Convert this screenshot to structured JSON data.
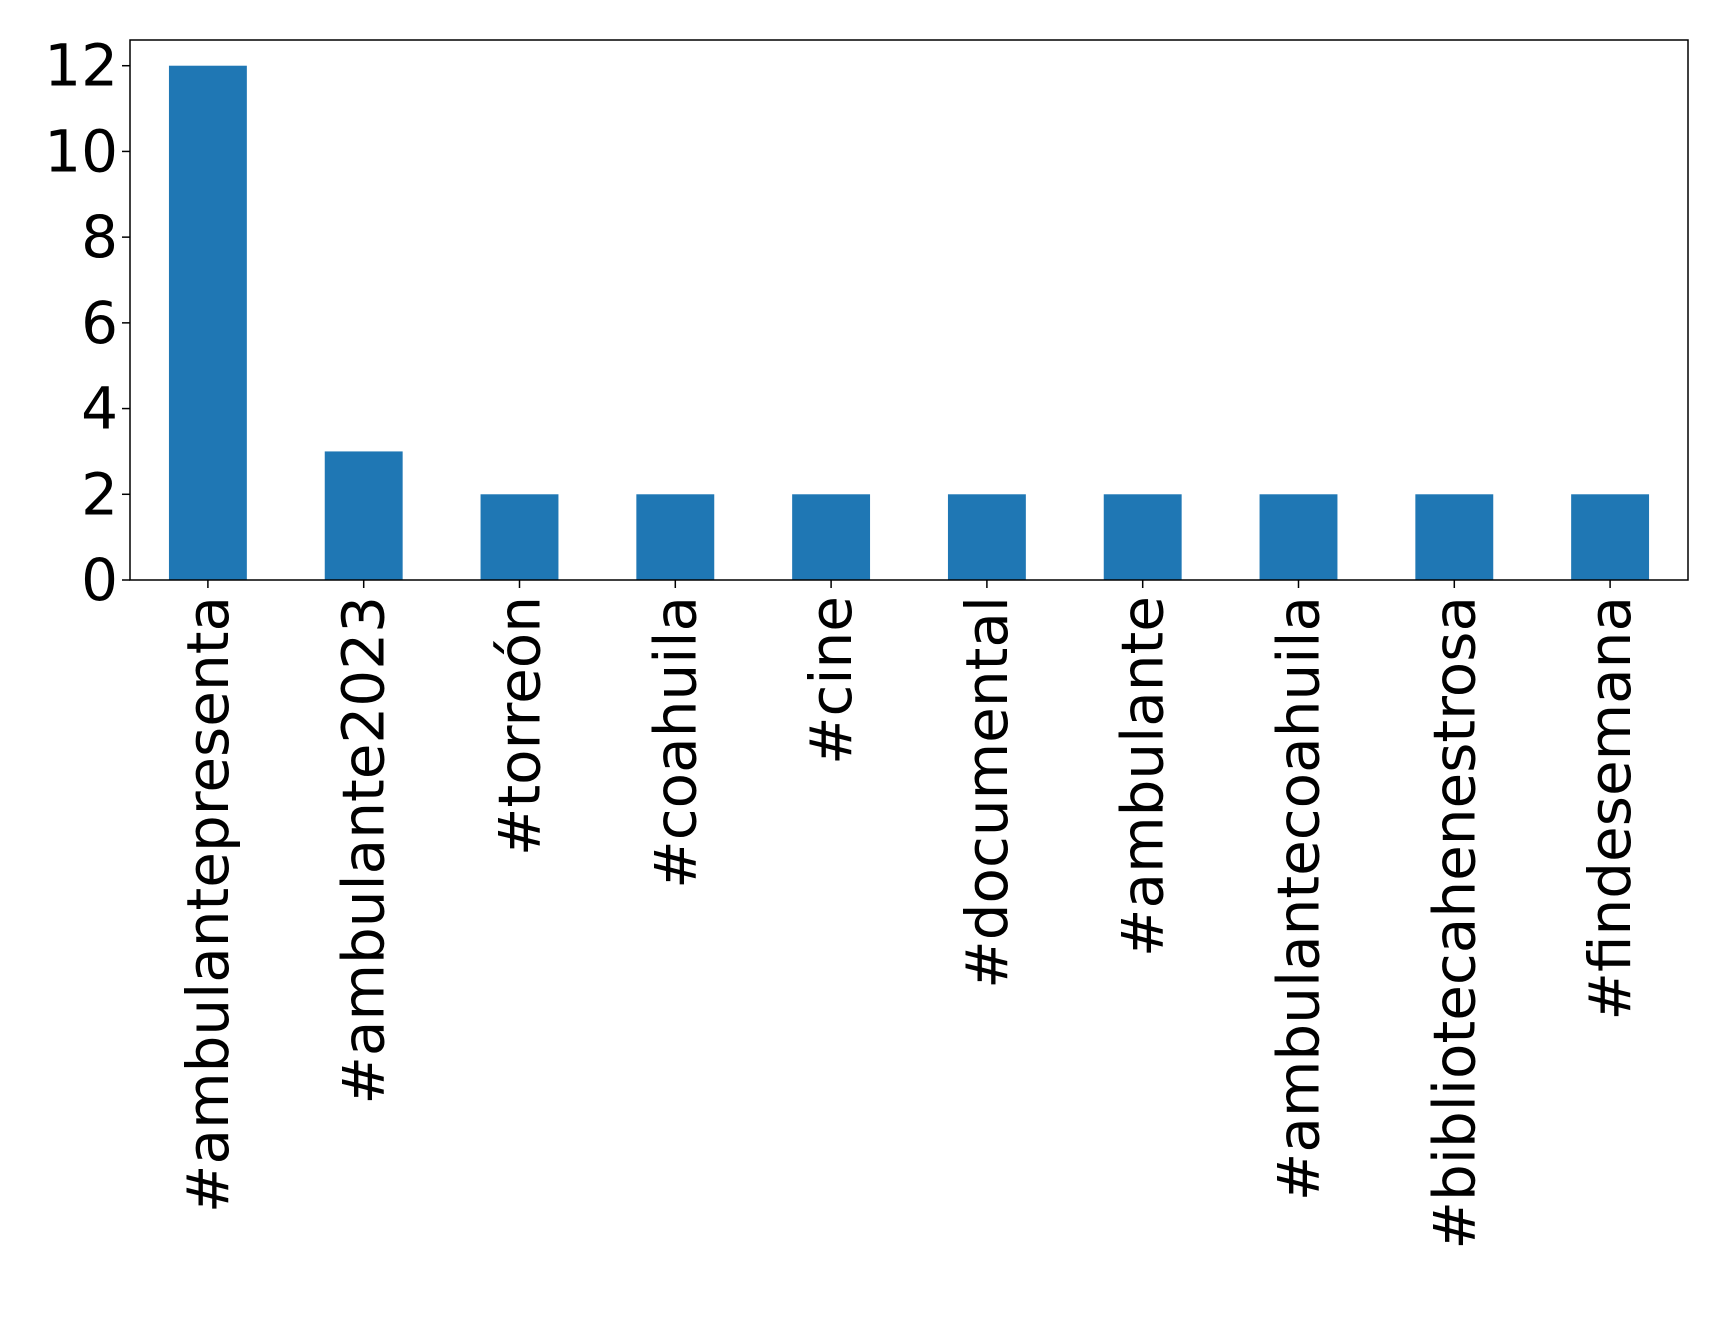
{
  "chart_data": {
    "type": "bar",
    "title": "",
    "xlabel": "",
    "ylabel": "",
    "categories": [
      "#ambulantepresenta",
      "#ambulante2023",
      "#torreón",
      "#coahuila",
      "#cine",
      "#documental",
      "#ambulante",
      "#ambulantecoahuila",
      "#bibliotecahenestrosa",
      "#findesemana"
    ],
    "values": [
      12,
      3,
      2,
      2,
      2,
      2,
      2,
      2,
      2,
      2
    ],
    "ylim": [
      0,
      12.6
    ],
    "yticks": [
      0,
      2,
      4,
      6,
      8,
      10,
      12
    ],
    "grid": false,
    "legend": "none",
    "colors": {
      "bar": "#1f77b4",
      "axis": "#000000",
      "background": "#ffffff"
    }
  }
}
